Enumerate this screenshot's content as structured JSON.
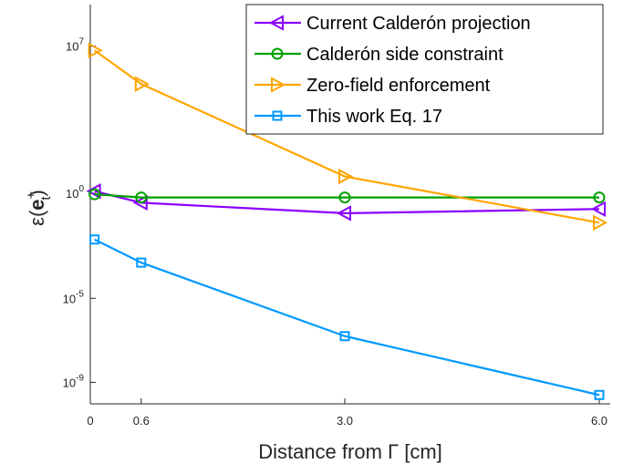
{
  "chart_data": {
    "type": "line",
    "x": [
      0.05,
      0.6,
      3.0,
      6.0
    ],
    "x_ticks": [
      {
        "value": 0,
        "label": "0"
      },
      {
        "value": 0.6,
        "label": "0.6"
      },
      {
        "value": 3.0,
        "label": "3.0"
      },
      {
        "value": 6.0,
        "label": "6.0"
      }
    ],
    "y_scale": "log",
    "xlim": [
      0,
      6.0
    ],
    "ylim_log10": [
      -10,
      9
    ],
    "y_ticks": [
      {
        "exp": 7,
        "base": "10",
        "sup": "7"
      },
      {
        "exp": 0,
        "base": "10",
        "sup": "0"
      },
      {
        "exp": -5,
        "base": "10",
        "sup": "-5"
      },
      {
        "exp": -9,
        "base": "10",
        "sup": "-9"
      }
    ],
    "xlabel": "Distance from Γ [cm]",
    "ylabel": {
      "prefix": "ε(",
      "bold": "e",
      "sup": "+",
      "sub": "t",
      "suffix": ")"
    },
    "grid": false,
    "legend_position": "top-right",
    "series": [
      {
        "name": "Current Calderón projection",
        "color": "#8b00ff",
        "marker": "triangle-left",
        "log10_values": [
          0.1,
          -0.45,
          -0.95,
          -0.75
        ]
      },
      {
        "name": "Calderón side constraint",
        "color": "#00a000",
        "marker": "circle",
        "log10_values": [
          -0.05,
          -0.2,
          -0.2,
          -0.2
        ]
      },
      {
        "name": "Zero-field enforcement",
        "color": "#ffa500",
        "marker": "triangle-right",
        "log10_values": [
          6.8,
          5.2,
          0.8,
          -1.4
        ]
      },
      {
        "name": "This work Eq. 17",
        "color": "#0099ff",
        "marker": "square",
        "log10_values": [
          -2.2,
          -3.3,
          -6.8,
          -9.6
        ]
      }
    ]
  }
}
